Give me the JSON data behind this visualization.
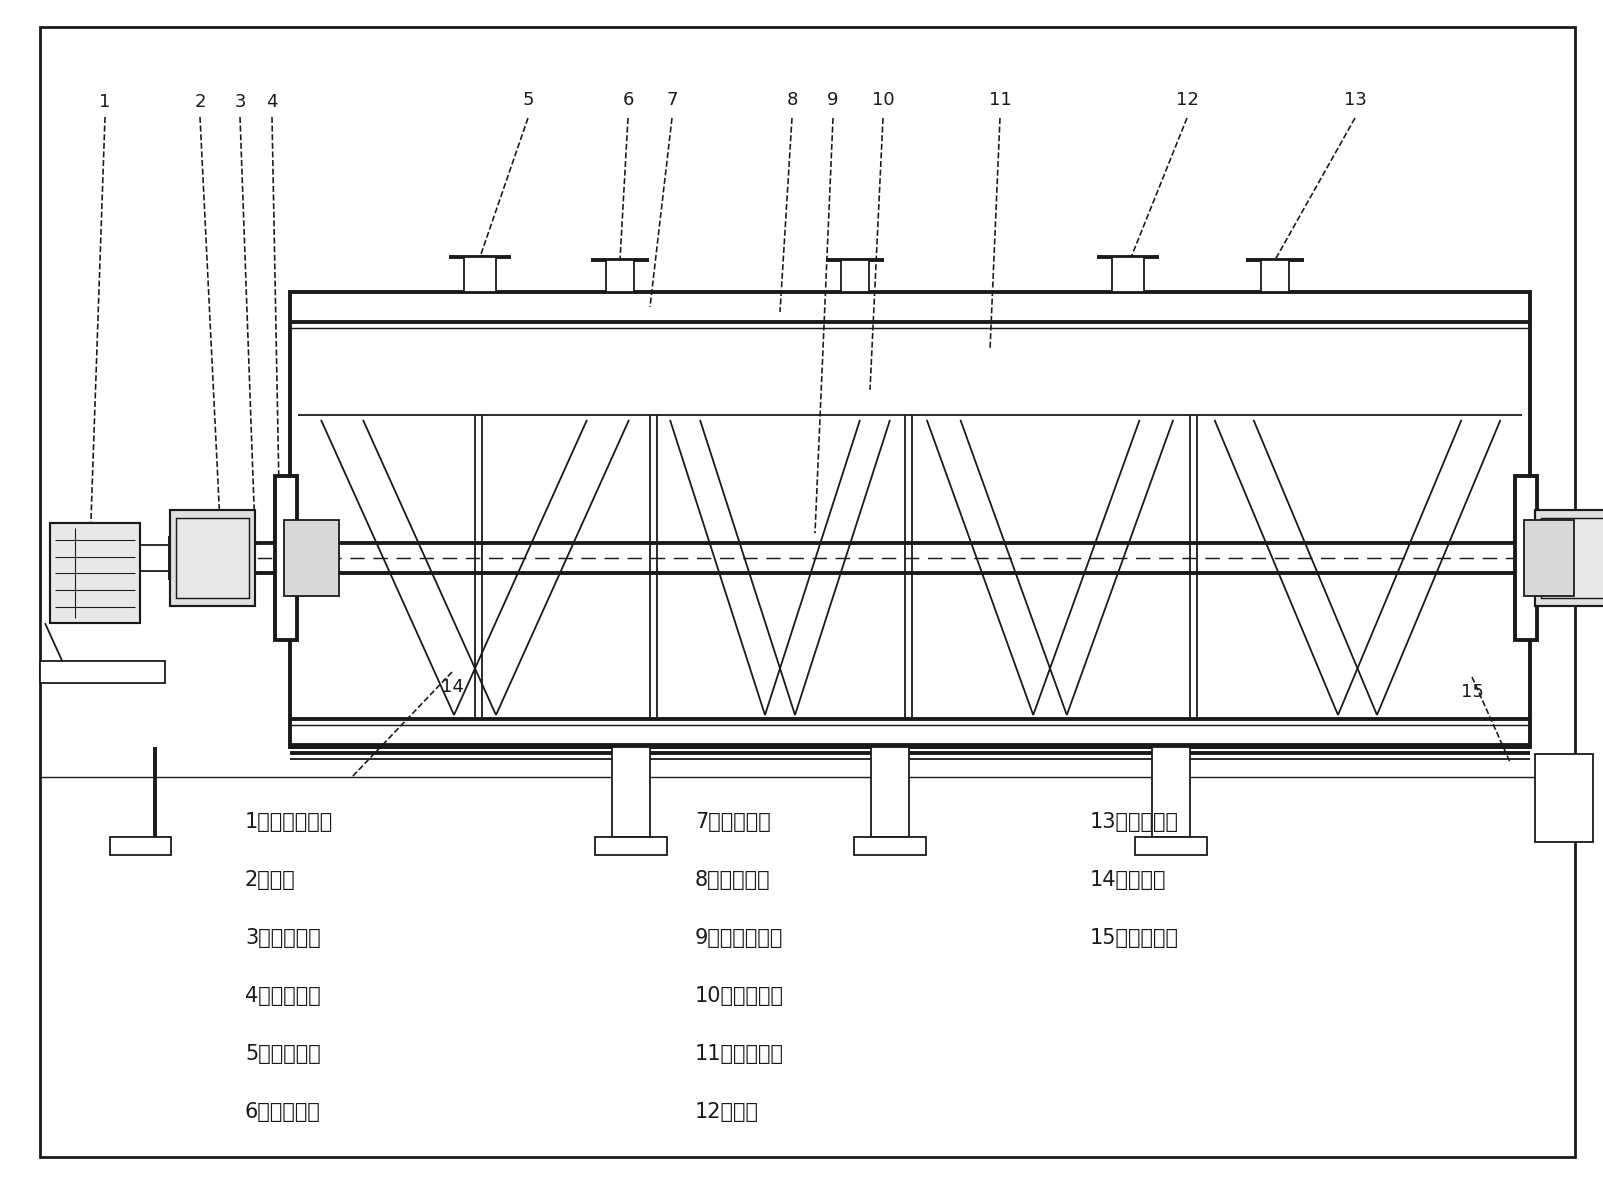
{
  "bg": "#ffffff",
  "lc": "#1a1a1a",
  "lw": 1.3,
  "tlw": 2.8,
  "legend": [
    [
      "1、电机减速机",
      "7、夹套壳体",
      "13、冷媒出口"
    ],
    [
      "2、轴承",
      "8、内筒壳体",
      "14、排污口"
    ],
    [
      "3、旋转接头",
      "9、空心搅拌轴",
      "15、物料出口"
    ],
    [
      "4、机械密封",
      "10、螺旋盘管",
      ""
    ],
    [
      "5、物料入口",
      "11、螺旋搅带",
      ""
    ],
    [
      "6、冷媒入口",
      "12、人孔",
      ""
    ]
  ]
}
